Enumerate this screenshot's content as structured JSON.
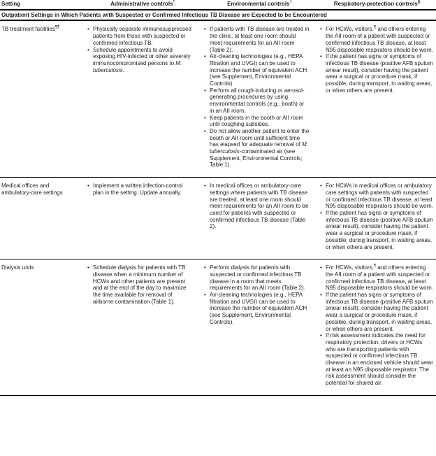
{
  "document": {
    "columns": [
      {
        "label": "Setting",
        "sup": ""
      },
      {
        "label": "Administrative controls",
        "sup": "*"
      },
      {
        "label": "Environmental controls",
        "sup": "†"
      },
      {
        "label": "Respiratory-protection controls",
        "sup": "§"
      }
    ],
    "section_header": "Outpatient Settings in Which Patients with Suspected or Confirmed Infectious TB Disease are Expected to be Encountered",
    "rows": [
      {
        "setting": "TB treatment facilities^¶¶^",
        "administrative": [
          "Physically separate immunosuppressed patients from those with suspected or confirmed infectious TB.",
          "Schedule appointments to avoid exposing HIV-infected or other severely immunocompromised persons to *M. tuberculosis*."
        ],
        "environmental": [
          "If patients with TB disease are treated in the clinic, at least one room should meet requirements for an AII room (Table 2).",
          "Air-cleaning technologies (e.g., HEPA filtration and UVGI) can be used to increase the number of equivalent ACH (see Supplement, Environmental Controls).",
          "Perform all cough-inducing or aerosol-generating procedures by using environmental controls (e.g., booth) or in an AII room.",
          "Keep patients in the booth or AII room until coughing subsides.",
          "Do not allow another patient to enter the booth or AII room until sufficient time has elapsed for adequate removal of *M. tuberculosis*-contaminated air (see Supplement, Environmental Controls; Table 1)."
        ],
        "respiratory": [
          "For HCWs, visitors,^¶^ and others entering the AII room of a patient with suspected or confirmed infectious TB disease, at least N95 disposable respirators should be worn.",
          "If the patient has signs or symptoms of infectious TB disease (positive AFB sputum smear result), consider having the patient wear a surgical or procedure mask, if possible, during transport, in waiting areas, or when others are present."
        ]
      },
      {
        "setting": "Medical offices and ambulatory-care settings",
        "administrative": [
          "Implement a written infection-control plan in the setting. Update annually."
        ],
        "environmental": [
          "In medical offices or ambulatory-care settings where patients with TB disease are treated, at least one room should meet requirements for an AII room to be used for patients with suspected or confirmed infectious TB disease (Table 2)."
        ],
        "respiratory": [
          "For HCWs in medical offices or ambulatory care settings with patients with suspected or confirmed infectious TB disease, at least N95 disposable respirators should be worn.",
          "If the patient has signs or symptoms of infectious TB disease (positive AFB sputum smear result), consider having the patient wear a surgical or procedure mask, if possible, during transport, in waiting areas, or when others are present."
        ]
      },
      {
        "setting": "Dialysis units",
        "administrative": [
          "Schedule dialysis for patients with TB disease when a minimum number of HCWs and other patients are present and at the end of the day to maximize the time available for removal of airborne contamination (Table 1)."
        ],
        "environmental": [
          "Perform dialysis for patients with suspected or confirmed infectious TB disease in a room that meets requirements for an AII room (Table 2).",
          "Air-cleaning technologies (e.g., HEPA filtration and UVGI) can be used to increase the number of equivalent ACH (see Supplement, Environmental Controls)."
        ],
        "respiratory": [
          "For HCWs, visitors,^¶^ and others entering the AII room of a patient with suspected or confirmed infectious TB disease, at least N95 disposable respirators should be worn.",
          "If the patient has signs or symptoms of infectious TB disease (positive AFB sputum smear result), consider having the patient wear a surgical or procedure mask, if possible, during transport, in waiting areas, or when others are present.",
          "If risk assessment indicates the need for respiratory protection, drivers or HCWs who are transporting patients with suspected or confirmed infectious TB disease in an enclosed vehicle should wear at least an N95 disposable respirator. The risk assessment should consider the potential for shared air."
        ]
      }
    ]
  }
}
